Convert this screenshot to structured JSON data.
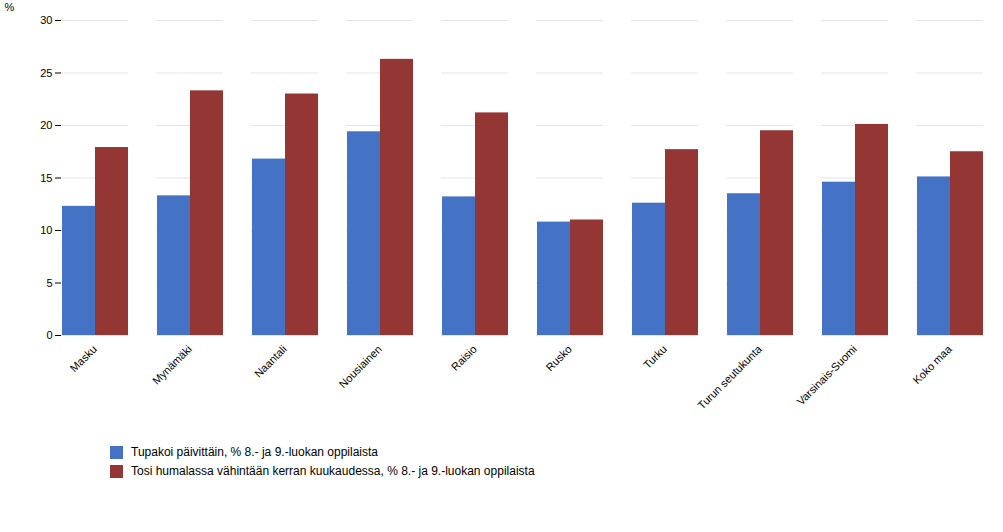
{
  "chart_data": {
    "type": "bar",
    "categories": [
      "Masku",
      "Mynämäki",
      "Naantali",
      "Nousiainen",
      "Raisio",
      "Rusko",
      "Turku",
      "Turun seutukunta",
      "Varsinais-Suomi",
      "Koko maa"
    ],
    "series": [
      {
        "name": "Tupakoi päivittäin, % 8.- ja 9.-luokan oppilaista",
        "color": "#4472C4",
        "values": [
          12.3,
          13.3,
          16.8,
          19.4,
          13.2,
          10.8,
          12.6,
          13.5,
          14.6,
          15.1
        ]
      },
      {
        "name": "Tosi humalassa vähintään kerran kuukaudessa, % 8.- ja 9.-luokan oppilaista",
        "color": "#943634",
        "values": [
          17.9,
          23.3,
          23.0,
          26.3,
          21.2,
          11.0,
          17.7,
          19.5,
          20.1,
          17.5
        ]
      }
    ],
    "ylabel": "%",
    "ylim": [
      0,
      30
    ],
    "yticks": [
      0,
      5,
      10,
      15,
      20,
      25,
      30
    ],
    "grid": true,
    "legend": "lower left"
  }
}
